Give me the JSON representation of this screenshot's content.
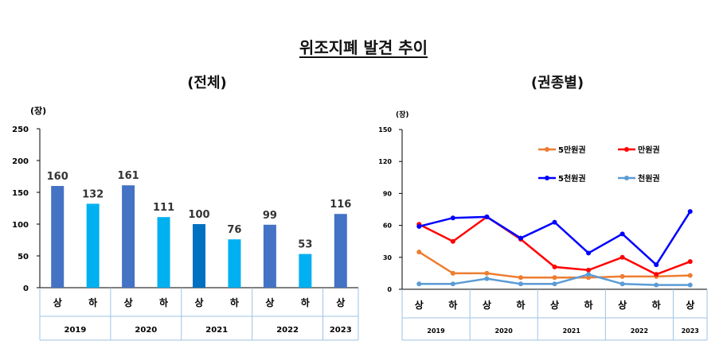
{
  "title": "위조지폐 발견 추이",
  "charts": {
    "left_subtitle": "(전체)",
    "right_subtitle": "(권종별)"
  },
  "chart_data": [
    {
      "type": "bar",
      "title": "(전체)",
      "ylabel": "(장)",
      "ylim": [
        0,
        250
      ],
      "yticks": [
        0,
        50,
        100,
        150,
        200,
        250
      ],
      "categories": [
        "상",
        "하",
        "상",
        "하",
        "상",
        "하",
        "상",
        "하",
        "상"
      ],
      "years": [
        "2019",
        "2020",
        "2021",
        "2022",
        "2023"
      ],
      "values": [
        160,
        132,
        161,
        111,
        100,
        76,
        99,
        53,
        116
      ],
      "colors": [
        "#4472c4",
        "#00b0f0",
        "#4472c4",
        "#00b0f0",
        "#0070c0",
        "#00b0f0",
        "#4472c4",
        "#00b0f0",
        "#4472c4"
      ],
      "grid": false
    },
    {
      "type": "line",
      "title": "(권종별)",
      "ylabel": "(장)",
      "ylim": [
        0,
        150
      ],
      "yticks": [
        0,
        30,
        60,
        90,
        120,
        150
      ],
      "categories": [
        "상",
        "하",
        "상",
        "하",
        "상",
        "하",
        "상",
        "하",
        "상"
      ],
      "years": [
        "2019",
        "2020",
        "2021",
        "2022",
        "2023"
      ],
      "legend": "top-right",
      "grid": false,
      "series": [
        {
          "name": "5만원권",
          "color": "#ed7d31",
          "values": [
            35,
            15,
            15,
            11,
            11,
            11,
            12,
            12,
            13
          ]
        },
        {
          "name": "만원권",
          "color": "#ff0000",
          "values": [
            61,
            45,
            68,
            47,
            21,
            18,
            30,
            14,
            26
          ]
        },
        {
          "name": "5천원권",
          "color": "#0000ff",
          "values": [
            59,
            67,
            68,
            48,
            63,
            34,
            52,
            23,
            73
          ]
        },
        {
          "name": "천원권",
          "color": "#5b9bd5",
          "values": [
            5,
            5,
            10,
            5,
            5,
            14,
            5,
            4,
            4
          ]
        }
      ]
    }
  ]
}
